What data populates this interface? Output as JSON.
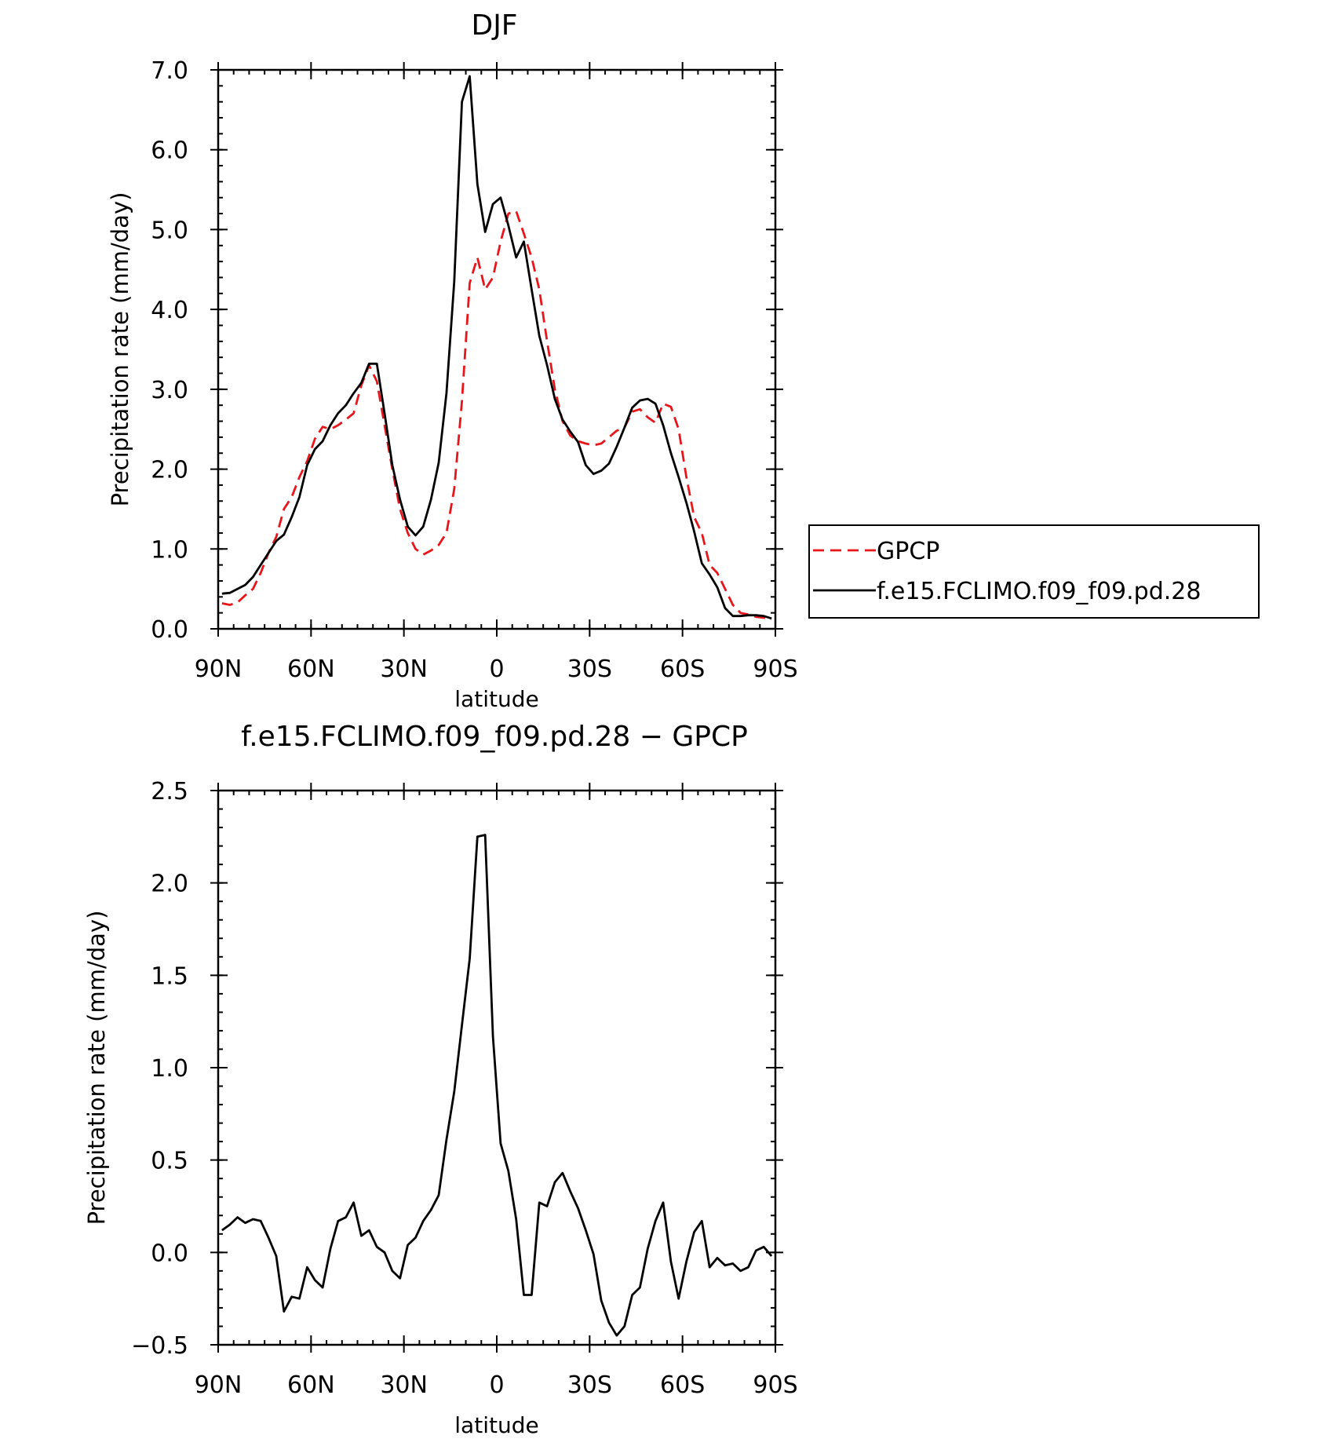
{
  "chart_data": [
    {
      "type": "line",
      "title": "DJF",
      "xlabel": "latitude",
      "ylabel": "Precipitation rate (mm/day)",
      "xlim": [
        90,
        -90
      ],
      "ylim": [
        0,
        7
      ],
      "xticks": [
        90,
        60,
        30,
        0,
        -30,
        -60,
        -90
      ],
      "xtick_labels": [
        "90N",
        "60N",
        "30N",
        "0",
        "30S",
        "60S",
        "90S"
      ],
      "yticks": [
        0,
        1,
        2,
        3,
        4,
        5,
        6,
        7
      ],
      "ytick_labels": [
        "0.0",
        "1.0",
        "2.0",
        "3.0",
        "4.0",
        "5.0",
        "6.0",
        "7.0"
      ],
      "legend": {
        "placement": "outside-right",
        "entries": [
          "GPCP",
          "f.e15.FCLIMO.f09_f09.pd.28"
        ]
      },
      "series": [
        {
          "name": "GPCP",
          "color": "#e8161b",
          "dash": "dashed",
          "x": [
            88.75,
            86.25,
            83.75,
            81.25,
            78.75,
            76.25,
            73.75,
            71.25,
            68.75,
            66.25,
            63.75,
            61.25,
            58.75,
            56.25,
            53.75,
            51.25,
            48.75,
            46.25,
            43.75,
            41.25,
            38.75,
            36.25,
            33.75,
            31.25,
            28.75,
            26.25,
            23.75,
            21.25,
            18.75,
            16.25,
            13.75,
            11.25,
            8.75,
            6.25,
            3.75,
            1.25,
            -1.25,
            -3.75,
            -6.25,
            -8.75,
            -11.25,
            -13.75,
            -16.25,
            -18.75,
            -21.25,
            -23.75,
            -26.25,
            -28.75,
            -31.25,
            -33.75,
            -36.25,
            -38.75,
            -41.25,
            -43.75,
            -46.25,
            -48.75,
            -51.25,
            -53.75,
            -56.25,
            -58.75,
            -61.25,
            -63.75,
            -66.25,
            -68.75,
            -71.25,
            -73.75,
            -76.25,
            -78.75,
            -81.25,
            -83.75,
            -86.25,
            -88.75
          ],
          "y": [
            0.32,
            0.3,
            0.33,
            0.42,
            0.5,
            0.7,
            0.95,
            1.15,
            1.5,
            1.65,
            1.9,
            2.1,
            2.38,
            2.53,
            2.5,
            2.55,
            2.62,
            2.7,
            3.05,
            3.3,
            3.1,
            2.55,
            2.0,
            1.5,
            1.2,
            1.0,
            0.93,
            0.98,
            1.05,
            1.2,
            1.75,
            2.85,
            4.33,
            4.65,
            4.25,
            4.4,
            4.85,
            5.2,
            5.23,
            4.95,
            4.65,
            4.25,
            3.6,
            3.0,
            2.6,
            2.42,
            2.35,
            2.32,
            2.3,
            2.32,
            2.4,
            2.48,
            2.52,
            2.72,
            2.75,
            2.65,
            2.58,
            2.82,
            2.78,
            2.5,
            1.9,
            1.4,
            1.2,
            0.8,
            0.7,
            0.5,
            0.3,
            0.2,
            0.18,
            0.15,
            0.14,
            0.12
          ]
        },
        {
          "name": "f.e15.FCLIMO.f09_f09.pd.28",
          "color": "#000000",
          "dash": "solid",
          "x": [
            88.75,
            86.25,
            83.75,
            81.25,
            78.75,
            76.25,
            73.75,
            71.25,
            68.75,
            66.25,
            63.75,
            61.25,
            58.75,
            56.25,
            53.75,
            51.25,
            48.75,
            46.25,
            43.75,
            41.25,
            38.75,
            36.25,
            33.75,
            31.25,
            28.75,
            26.25,
            23.75,
            21.25,
            18.75,
            16.25,
            13.75,
            11.25,
            8.75,
            6.25,
            3.75,
            1.25,
            -1.25,
            -3.75,
            -6.25,
            -8.75,
            -11.25,
            -13.75,
            -16.25,
            -18.75,
            -21.25,
            -23.75,
            -26.25,
            -28.75,
            -31.25,
            -33.75,
            -36.25,
            -38.75,
            -41.25,
            -43.75,
            -46.25,
            -48.75,
            -51.25,
            -53.75,
            -56.25,
            -58.75,
            -61.25,
            -63.75,
            -66.25,
            -68.75,
            -71.25,
            -73.75,
            -76.25,
            -78.75,
            -81.25,
            -83.75,
            -86.25,
            -88.75
          ],
          "y": [
            0.44,
            0.45,
            0.5,
            0.55,
            0.65,
            0.8,
            0.95,
            1.1,
            1.18,
            1.4,
            1.65,
            2.05,
            2.25,
            2.35,
            2.55,
            2.7,
            2.8,
            2.95,
            3.08,
            3.32,
            3.32,
            2.7,
            2.05,
            1.62,
            1.28,
            1.17,
            1.28,
            1.62,
            2.08,
            2.95,
            4.35,
            6.6,
            6.92,
            5.57,
            4.97,
            5.32,
            5.4,
            5.05,
            4.65,
            4.85,
            4.25,
            3.67,
            3.3,
            2.88,
            2.62,
            2.47,
            2.34,
            2.05,
            1.94,
            1.98,
            2.07,
            2.28,
            2.52,
            2.77,
            2.86,
            2.88,
            2.82,
            2.55,
            2.2,
            1.9,
            1.58,
            1.22,
            0.82,
            0.68,
            0.52,
            0.26,
            0.16,
            0.16,
            0.17,
            0.17,
            0.16,
            0.13
          ]
        }
      ]
    },
    {
      "type": "line",
      "title": "f.e15.FCLIMO.f09_f09.pd.28 − GPCP",
      "xlabel": "latitude",
      "ylabel": "Precipitation rate (mm/day)",
      "xlim": [
        90,
        -90
      ],
      "ylim": [
        -0.5,
        2.5
      ],
      "xticks": [
        90,
        60,
        30,
        0,
        -30,
        -60,
        -90
      ],
      "xtick_labels": [
        "90N",
        "60N",
        "30N",
        "0",
        "30S",
        "60S",
        "90S"
      ],
      "yticks": [
        -0.5,
        0,
        0.5,
        1,
        1.5,
        2,
        2.5
      ],
      "ytick_labels": [
        "−0.5",
        "0.0",
        "0.5",
        "1.0",
        "1.5",
        "2.0",
        "2.5"
      ],
      "series": [
        {
          "color": "#000000",
          "dash": "solid",
          "x": [
            88.75,
            86.25,
            83.75,
            81.25,
            78.75,
            76.25,
            73.75,
            71.25,
            68.75,
            66.25,
            63.75,
            61.25,
            58.75,
            56.25,
            53.75,
            51.25,
            48.75,
            46.25,
            43.75,
            41.25,
            38.75,
            36.25,
            33.75,
            31.25,
            28.75,
            26.25,
            23.75,
            21.25,
            18.75,
            16.25,
            13.75,
            11.25,
            8.75,
            6.25,
            3.75,
            1.25,
            -1.25,
            -3.75,
            -6.25,
            -8.75,
            -11.25,
            -13.75,
            -16.25,
            -18.75,
            -21.25,
            -23.75,
            -26.25,
            -28.75,
            -31.25,
            -33.75,
            -36.25,
            -38.75,
            -41.25,
            -43.75,
            -46.25,
            -48.75,
            -51.25,
            -53.75,
            -56.25,
            -58.75,
            -61.25,
            -63.75,
            -66.25,
            -68.75,
            -71.25,
            -73.75,
            -76.25,
            -78.75,
            -81.25,
            -83.75,
            -86.25,
            -88.75
          ],
          "y": [
            0.12,
            0.15,
            0.19,
            0.16,
            0.18,
            0.17,
            0.08,
            -0.02,
            -0.32,
            -0.24,
            -0.25,
            -0.08,
            -0.15,
            -0.19,
            0.02,
            0.17,
            0.19,
            0.27,
            0.09,
            0.12,
            0.03,
            0.0,
            -0.1,
            -0.14,
            0.04,
            0.08,
            0.17,
            0.23,
            0.31,
            0.61,
            0.87,
            1.23,
            1.59,
            2.25,
            2.26,
            1.17,
            0.59,
            0.44,
            0.18,
            -0.23,
            -0.23,
            0.27,
            0.25,
            0.38,
            0.43,
            0.33,
            0.24,
            0.12,
            -0.01,
            -0.26,
            -0.38,
            -0.45,
            -0.4,
            -0.23,
            -0.19,
            0.02,
            0.17,
            0.27,
            -0.05,
            -0.25,
            -0.05,
            0.11,
            0.17,
            -0.08,
            -0.03,
            -0.07,
            -0.06,
            -0.1,
            -0.08,
            0.01,
            0.03,
            -0.02
          ]
        }
      ]
    }
  ]
}
